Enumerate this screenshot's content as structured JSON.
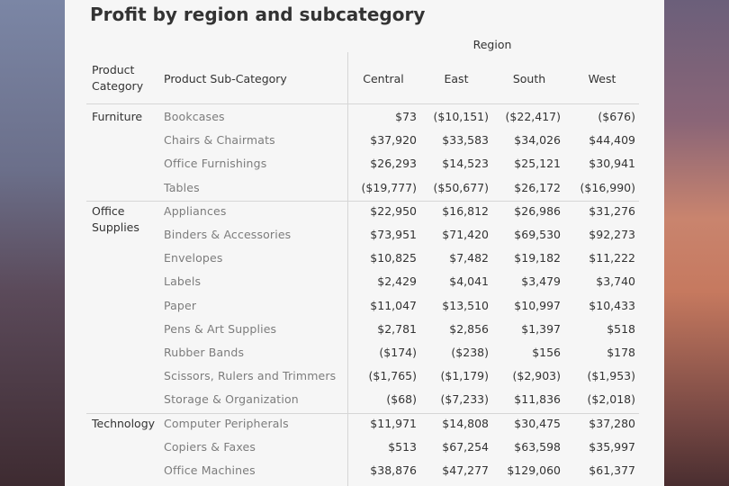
{
  "chart_data": {
    "type": "table",
    "title": "Profit by region and subcategory",
    "column_group_label": "Region",
    "header": {
      "category": "Product Category",
      "sub_category": "Product Sub-Category",
      "regions": [
        "Central",
        "East",
        "South",
        "West"
      ]
    },
    "groups": [
      {
        "category": "Furniture",
        "rows": [
          {
            "sub": "Bookcases",
            "values": [
              "$73",
              "($10,151)",
              "($22,417)",
              "($676)"
            ]
          },
          {
            "sub": "Chairs & Chairmats",
            "values": [
              "$37,920",
              "$33,583",
              "$34,026",
              "$44,409"
            ]
          },
          {
            "sub": "Office Furnishings",
            "values": [
              "$26,293",
              "$14,523",
              "$25,121",
              "$30,941"
            ]
          },
          {
            "sub": "Tables",
            "values": [
              "($19,777)",
              "($50,677)",
              "$26,172",
              "($16,990)"
            ]
          }
        ]
      },
      {
        "category": "Office Supplies",
        "rows": [
          {
            "sub": "Appliances",
            "values": [
              "$22,950",
              "$16,812",
              "$26,986",
              "$31,276"
            ]
          },
          {
            "sub": "Binders & Accessories",
            "values": [
              "$73,951",
              "$71,420",
              "$69,530",
              "$92,273"
            ]
          },
          {
            "sub": "Envelopes",
            "values": [
              "$10,825",
              "$7,482",
              "$19,182",
              "$11,222"
            ]
          },
          {
            "sub": "Labels",
            "values": [
              "$2,429",
              "$4,041",
              "$3,479",
              "$3,740"
            ]
          },
          {
            "sub": "Paper",
            "values": [
              "$11,047",
              "$13,510",
              "$10,997",
              "$10,433"
            ]
          },
          {
            "sub": "Pens & Art Supplies",
            "values": [
              "$2,781",
              "$2,856",
              "$1,397",
              "$518"
            ]
          },
          {
            "sub": "Rubber Bands",
            "values": [
              "($174)",
              "($238)",
              "$156",
              "$178"
            ]
          },
          {
            "sub": "Scissors, Rulers and Trimmers",
            "values": [
              "($1,765)",
              "($1,179)",
              "($2,903)",
              "($1,953)"
            ]
          },
          {
            "sub": "Storage & Organization",
            "values": [
              "($68)",
              "($7,233)",
              "$11,836",
              "($2,018)"
            ]
          }
        ]
      },
      {
        "category": "Technology",
        "rows": [
          {
            "sub": "Computer Peripherals",
            "values": [
              "$11,971",
              "$14,808",
              "$30,475",
              "$37,280"
            ]
          },
          {
            "sub": "Copiers & Faxes",
            "values": [
              "$513",
              "$67,254",
              "$63,598",
              "$35,997"
            ]
          },
          {
            "sub": "Office Machines",
            "values": [
              "$38,876",
              "$47,277",
              "$129,060",
              "$61,377"
            ]
          }
        ]
      }
    ]
  }
}
